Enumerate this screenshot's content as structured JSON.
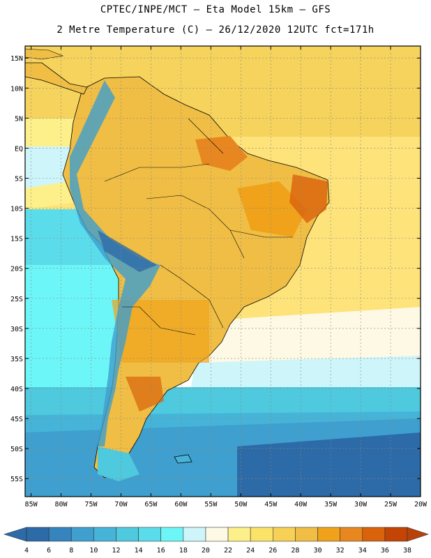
{
  "header": {
    "line1": "CPTEC/INPE/MCT –  Eta Model 15km – GFS",
    "line2": "2 Metre Temperature (C) – 26/12/2020 12UTC fct=171h"
  },
  "map": {
    "lon_range": [
      -86,
      -20
    ],
    "lat_range": [
      -58,
      17
    ],
    "lat_labels": [
      {
        "lat": 15,
        "label": "15N"
      },
      {
        "lat": 10,
        "label": "10N"
      },
      {
        "lat": 5,
        "label": "5N"
      },
      {
        "lat": 0,
        "label": "EQ"
      },
      {
        "lat": -5,
        "label": "5S"
      },
      {
        "lat": -10,
        "label": "10S"
      },
      {
        "lat": -15,
        "label": "15S"
      },
      {
        "lat": -20,
        "label": "20S"
      },
      {
        "lat": -25,
        "label": "25S"
      },
      {
        "lat": -30,
        "label": "30S"
      },
      {
        "lat": -35,
        "label": "35S"
      },
      {
        "lat": -40,
        "label": "40S"
      },
      {
        "lat": -45,
        "label": "45S"
      },
      {
        "lat": -50,
        "label": "50S"
      },
      {
        "lat": -55,
        "label": "55S"
      }
    ],
    "lon_labels": [
      {
        "lon": -85,
        "label": "85W"
      },
      {
        "lon": -80,
        "label": "80W"
      },
      {
        "lon": -75,
        "label": "75W"
      },
      {
        "lon": -70,
        "label": "70W"
      },
      {
        "lon": -65,
        "label": "65W"
      },
      {
        "lon": -60,
        "label": "60W"
      },
      {
        "lon": -55,
        "label": "55W"
      },
      {
        "lon": -50,
        "label": "50W"
      },
      {
        "lon": -45,
        "label": "45W"
      },
      {
        "lon": -40,
        "label": "40W"
      },
      {
        "lon": -35,
        "label": "35W"
      },
      {
        "lon": -30,
        "label": "30W"
      },
      {
        "lon": -25,
        "label": "25W"
      },
      {
        "lon": -20,
        "label": "20W"
      }
    ]
  },
  "colorbar": {
    "bins": [
      {
        "color": "#2c6aa8"
      },
      {
        "color": "#3584bd"
      },
      {
        "color": "#3f9fce"
      },
      {
        "color": "#45b4d8"
      },
      {
        "color": "#4ec9dd"
      },
      {
        "color": "#5bdcea"
      },
      {
        "color": "#6df6f7"
      },
      {
        "color": "#cef5fa"
      },
      {
        "color": "#fef9e4"
      },
      {
        "color": "#fdf08a"
      },
      {
        "color": "#fbe36a"
      },
      {
        "color": "#f6d156"
      },
      {
        "color": "#f0be44"
      },
      {
        "color": "#f0a21b"
      },
      {
        "color": "#e8871f"
      },
      {
        "color": "#d9620b"
      },
      {
        "color": "#c34405"
      }
    ],
    "low_arrow_color": "#2c6aa8",
    "high_arrow_color": "#b8420a",
    "labels": [
      "4",
      "6",
      "8",
      "10",
      "12",
      "14",
      "16",
      "18",
      "20",
      "22",
      "24",
      "26",
      "28",
      "30",
      "32",
      "34",
      "36",
      "38"
    ]
  }
}
